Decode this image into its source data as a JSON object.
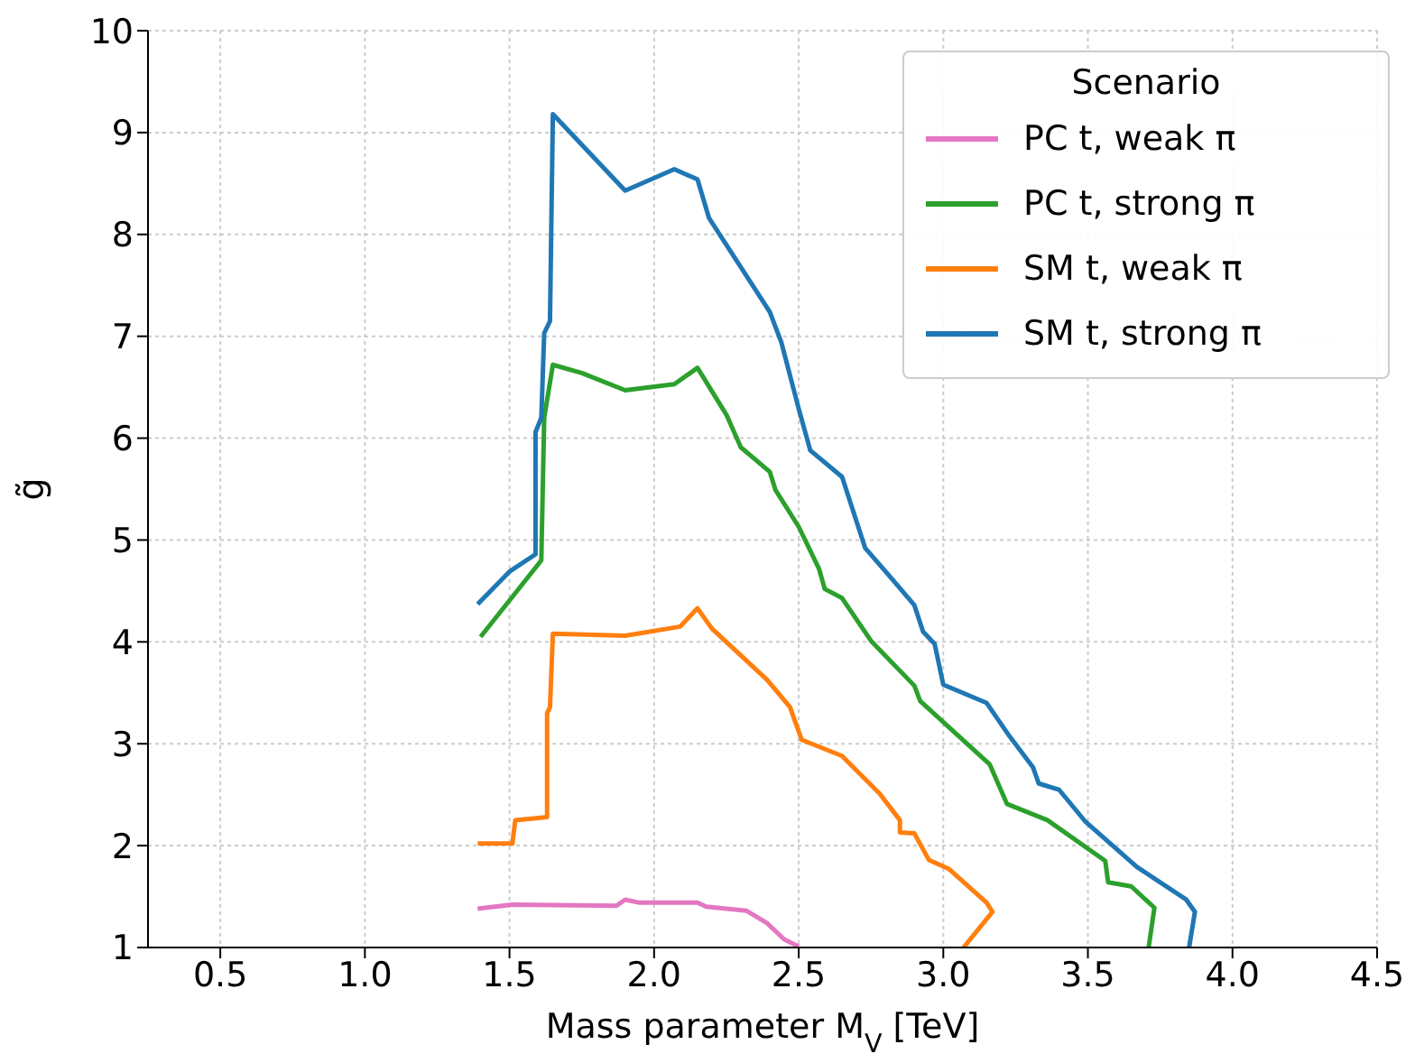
{
  "chart_data": {
    "type": "line",
    "xlabel": "Mass parameter M$_{V}$ [TeV]",
    "ylabel": "g̃",
    "legend_title": "Scenario",
    "legend": "top right",
    "grid": true,
    "marker": "none",
    "line_style": "solid",
    "xlim": [
      0.25,
      4.5
    ],
    "xticks": [
      0.5,
      {
        "value": 1,
        "label": "1.0"
      },
      1.5,
      {
        "value": 2,
        "label": "2.0"
      },
      2.5,
      {
        "value": 3,
        "label": "3.0"
      },
      3.5,
      {
        "value": 4,
        "label": "4.0"
      },
      4.5
    ],
    "ylim": [
      1,
      10
    ],
    "yticks": [
      1,
      2,
      3,
      4,
      5,
      6,
      7,
      8,
      9,
      10
    ],
    "series": [
      {
        "name": "PC t, weak π",
        "color": "#e377c2",
        "x": [
          1.39,
          1.51,
          1.87,
          1.9,
          1.95,
          2.15,
          2.18,
          2.32,
          2.39,
          2.45,
          2.5
        ],
        "values": [
          1.38,
          1.42,
          1.41,
          1.47,
          1.44,
          1.44,
          1.4,
          1.36,
          1.24,
          1.08,
          1.01
        ]
      },
      {
        "name": "PC t, strong π",
        "color": "#2ca02c",
        "x": [
          1.4,
          1.61,
          1.62,
          1.65,
          1.75,
          1.9,
          2.07,
          2.15,
          2.25,
          2.3,
          2.4,
          2.42,
          2.5,
          2.57,
          2.59,
          2.65,
          2.75,
          2.9,
          2.92,
          3.16,
          3.22,
          3.36,
          3.56,
          3.57,
          3.65,
          3.73,
          3.71
        ],
        "values": [
          4.05,
          4.8,
          6.2,
          6.72,
          6.64,
          6.47,
          6.53,
          6.69,
          6.23,
          5.91,
          5.67,
          5.49,
          5.13,
          4.72,
          4.52,
          4.43,
          4.01,
          3.57,
          3.42,
          2.8,
          2.41,
          2.25,
          1.85,
          1.64,
          1.6,
          1.39,
          1.0
        ]
      },
      {
        "name": "SM t, weak π",
        "color": "#ff7f0e",
        "x": [
          1.39,
          1.51,
          1.52,
          1.63,
          1.63,
          1.64,
          1.65,
          1.9,
          2.09,
          2.15,
          2.2,
          2.39,
          2.47,
          2.51,
          2.65,
          2.78,
          2.85,
          2.85,
          2.9,
          2.95,
          3.02,
          3.15,
          3.17,
          3.07
        ],
        "values": [
          2.02,
          2.02,
          2.25,
          2.28,
          3.3,
          3.36,
          4.08,
          4.06,
          4.15,
          4.33,
          4.13,
          3.63,
          3.36,
          3.04,
          2.88,
          2.51,
          2.25,
          2.13,
          2.12,
          1.86,
          1.77,
          1.44,
          1.35,
          1.0
        ]
      },
      {
        "name": "SM t, strong π",
        "color": "#1f77b4",
        "x": [
          1.39,
          1.5,
          1.59,
          1.59,
          1.61,
          1.62,
          1.64,
          1.65,
          1.9,
          2.07,
          2.15,
          2.19,
          2.4,
          2.44,
          2.5,
          2.54,
          2.65,
          2.73,
          2.81,
          2.9,
          2.93,
          2.97,
          3.0,
          3.15,
          3.23,
          3.31,
          3.33,
          3.4,
          3.49,
          3.67,
          3.84,
          3.87,
          3.85
        ],
        "values": [
          4.37,
          4.69,
          4.86,
          6.06,
          6.2,
          7.03,
          7.15,
          9.18,
          8.43,
          8.64,
          8.54,
          8.16,
          7.24,
          6.94,
          6.29,
          5.88,
          5.62,
          4.92,
          4.66,
          4.36,
          4.1,
          3.98,
          3.58,
          3.4,
          3.07,
          2.77,
          2.61,
          2.55,
          2.24,
          1.79,
          1.47,
          1.35,
          1.0
        ]
      }
    ]
  }
}
